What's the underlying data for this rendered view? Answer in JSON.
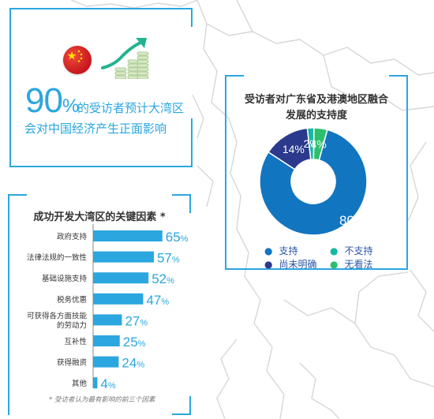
{
  "stat": {
    "number": "90",
    "percent": "%",
    "line1": "的受访者预计大湾区",
    "line2": "会对中国经济产生正面影响"
  },
  "icons": [
    "china-flag-icon",
    "growth-chart-icon"
  ],
  "chart_data": [
    {
      "type": "pie",
      "title_line1": "受访者对广东省及港澳地区融合",
      "title_line2": "发展的支持度",
      "categories": [
        "支持",
        "不支持",
        "尚未明确",
        "无看法"
      ],
      "values": [
        80,
        2,
        14,
        4
      ],
      "value_labels": [
        "80%",
        "2%",
        "14%",
        "4%"
      ],
      "colors": [
        "#1275c0",
        "#18b7a0",
        "#2b3a8c",
        "#2dbe6e"
      ],
      "legend_placement": "bottom"
    },
    {
      "type": "bar",
      "orientation": "horizontal",
      "title": "成功开发大湾区的关键因素 *",
      "categories": [
        "政府支持",
        "法律法规的一致性",
        "基础设施支持",
        "税务优惠",
        "可获得各方面技能的劳动力",
        "互补性",
        "获得融资",
        "其他"
      ],
      "category_lines": [
        [
          "政府支持"
        ],
        [
          "法律法规的一致性"
        ],
        [
          "基础设施支持"
        ],
        [
          "税务优惠"
        ],
        [
          "可获得各方面技能",
          "的劳动力"
        ],
        [
          "互补性"
        ],
        [
          "获得融资"
        ],
        [
          "其他"
        ]
      ],
      "values": [
        65,
        57,
        52,
        47,
        27,
        25,
        24,
        4
      ],
      "value_numbers": [
        "65",
        "57",
        "52",
        "47",
        "27",
        "25",
        "24",
        "4"
      ],
      "value_suffix": "%",
      "color": "#2ba6df",
      "footnote": "* 受访者认为最有影响的前三个因素"
    }
  ]
}
